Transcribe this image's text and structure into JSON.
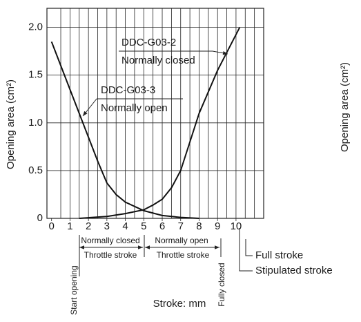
{
  "chart_data": {
    "type": "line",
    "xlabel": "Stroke: mm",
    "ylabel": "Opening area (cm²)",
    "right_ylabel": "Opening area (cm²)",
    "xlim": [
      -0.25,
      11.5
    ],
    "ylim": [
      0,
      2.2
    ],
    "xticks": [
      0,
      1,
      2,
      3,
      4,
      5,
      6,
      7,
      8,
      9,
      10
    ],
    "yticks": [
      0,
      0.5,
      {
        "value": 1,
        "label": "1.0"
      },
      1.5,
      {
        "value": 2,
        "label": "2.0"
      }
    ],
    "xgrid": [
      0.5,
      1,
      1.5,
      2,
      2.5,
      3,
      3.5,
      4,
      4.5,
      5,
      5.5,
      6,
      6.5,
      7,
      7.5,
      8,
      8.5,
      9,
      9.5,
      10,
      10.5,
      11
    ],
    "grid": true,
    "series": [
      {
        "name": "DDC-G03-3",
        "color": "#111111",
        "x": [
          0,
          1,
          2,
          2.5,
          3,
          3.5,
          4,
          5,
          6,
          7,
          8
        ],
        "values": [
          1.85,
          1.35,
          0.85,
          0.6,
          0.37,
          0.25,
          0.17,
          0.08,
          0.03,
          0.01,
          0
        ]
      },
      {
        "name": "DDC-G03-2",
        "color": "#111111",
        "x": [
          1.5,
          3,
          4,
          5,
          5.5,
          6,
          6.5,
          7,
          7.5,
          8,
          9,
          10.2
        ],
        "values": [
          0,
          0.02,
          0.05,
          0.09,
          0.14,
          0.2,
          0.32,
          0.5,
          0.8,
          1.1,
          1.55,
          2.0
        ]
      }
    ],
    "annotations": {
      "g03_2_sub": "Normally closed",
      "g03_3_sub": "Normally open",
      "closed_stroke": "Normally closed",
      "open_stroke": "Normally open",
      "throttle_left": "Throttle stroke",
      "throttle_right": "Throttle stroke",
      "start": "Start opening",
      "fully_closed": "Fully closed",
      "full_stroke": "Full stroke",
      "stipulated": "Stipulated stroke"
    }
  }
}
